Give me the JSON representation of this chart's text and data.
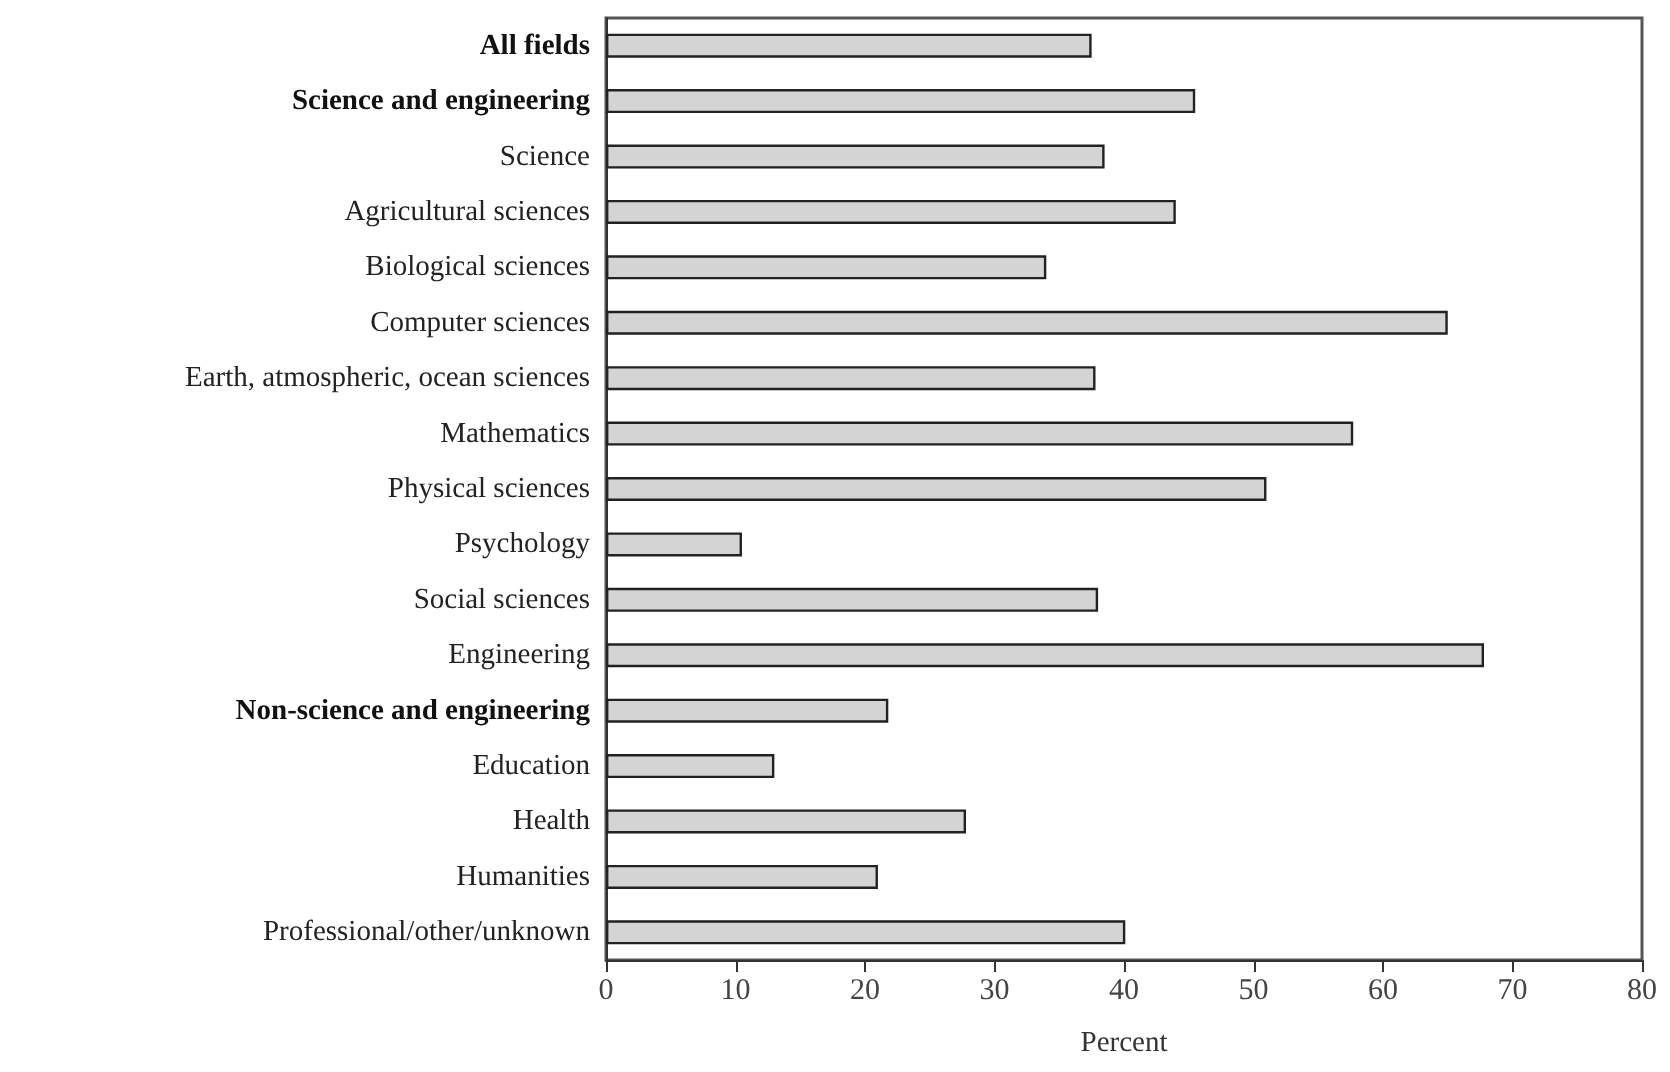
{
  "chart_data": {
    "type": "bar",
    "orientation": "horizontal",
    "xlabel": "Percent",
    "categories": [
      "All fields",
      "Science and engineering",
      "Science",
      "Agricultural sciences",
      "Biological sciences",
      "Computer sciences",
      "Earth, atmospheric, ocean sciences",
      "Mathematics",
      "Physical sciences",
      "Psychology",
      "Social sciences",
      "Engineering",
      "Non-science and engineering",
      "Education",
      "Health",
      "Humanities",
      "Professional/other/unknown"
    ],
    "values": [
      37.5,
      45.5,
      38.5,
      44,
      34,
      65,
      37.8,
      57.7,
      51,
      10.5,
      38,
      67.8,
      21.8,
      13,
      27.8,
      21,
      40.1
    ],
    "color": "#d4d4d4",
    "xlim": [
      0,
      80
    ],
    "xticks": [
      0,
      10,
      20,
      30,
      40,
      50,
      60,
      70,
      80
    ],
    "grid": false
  }
}
